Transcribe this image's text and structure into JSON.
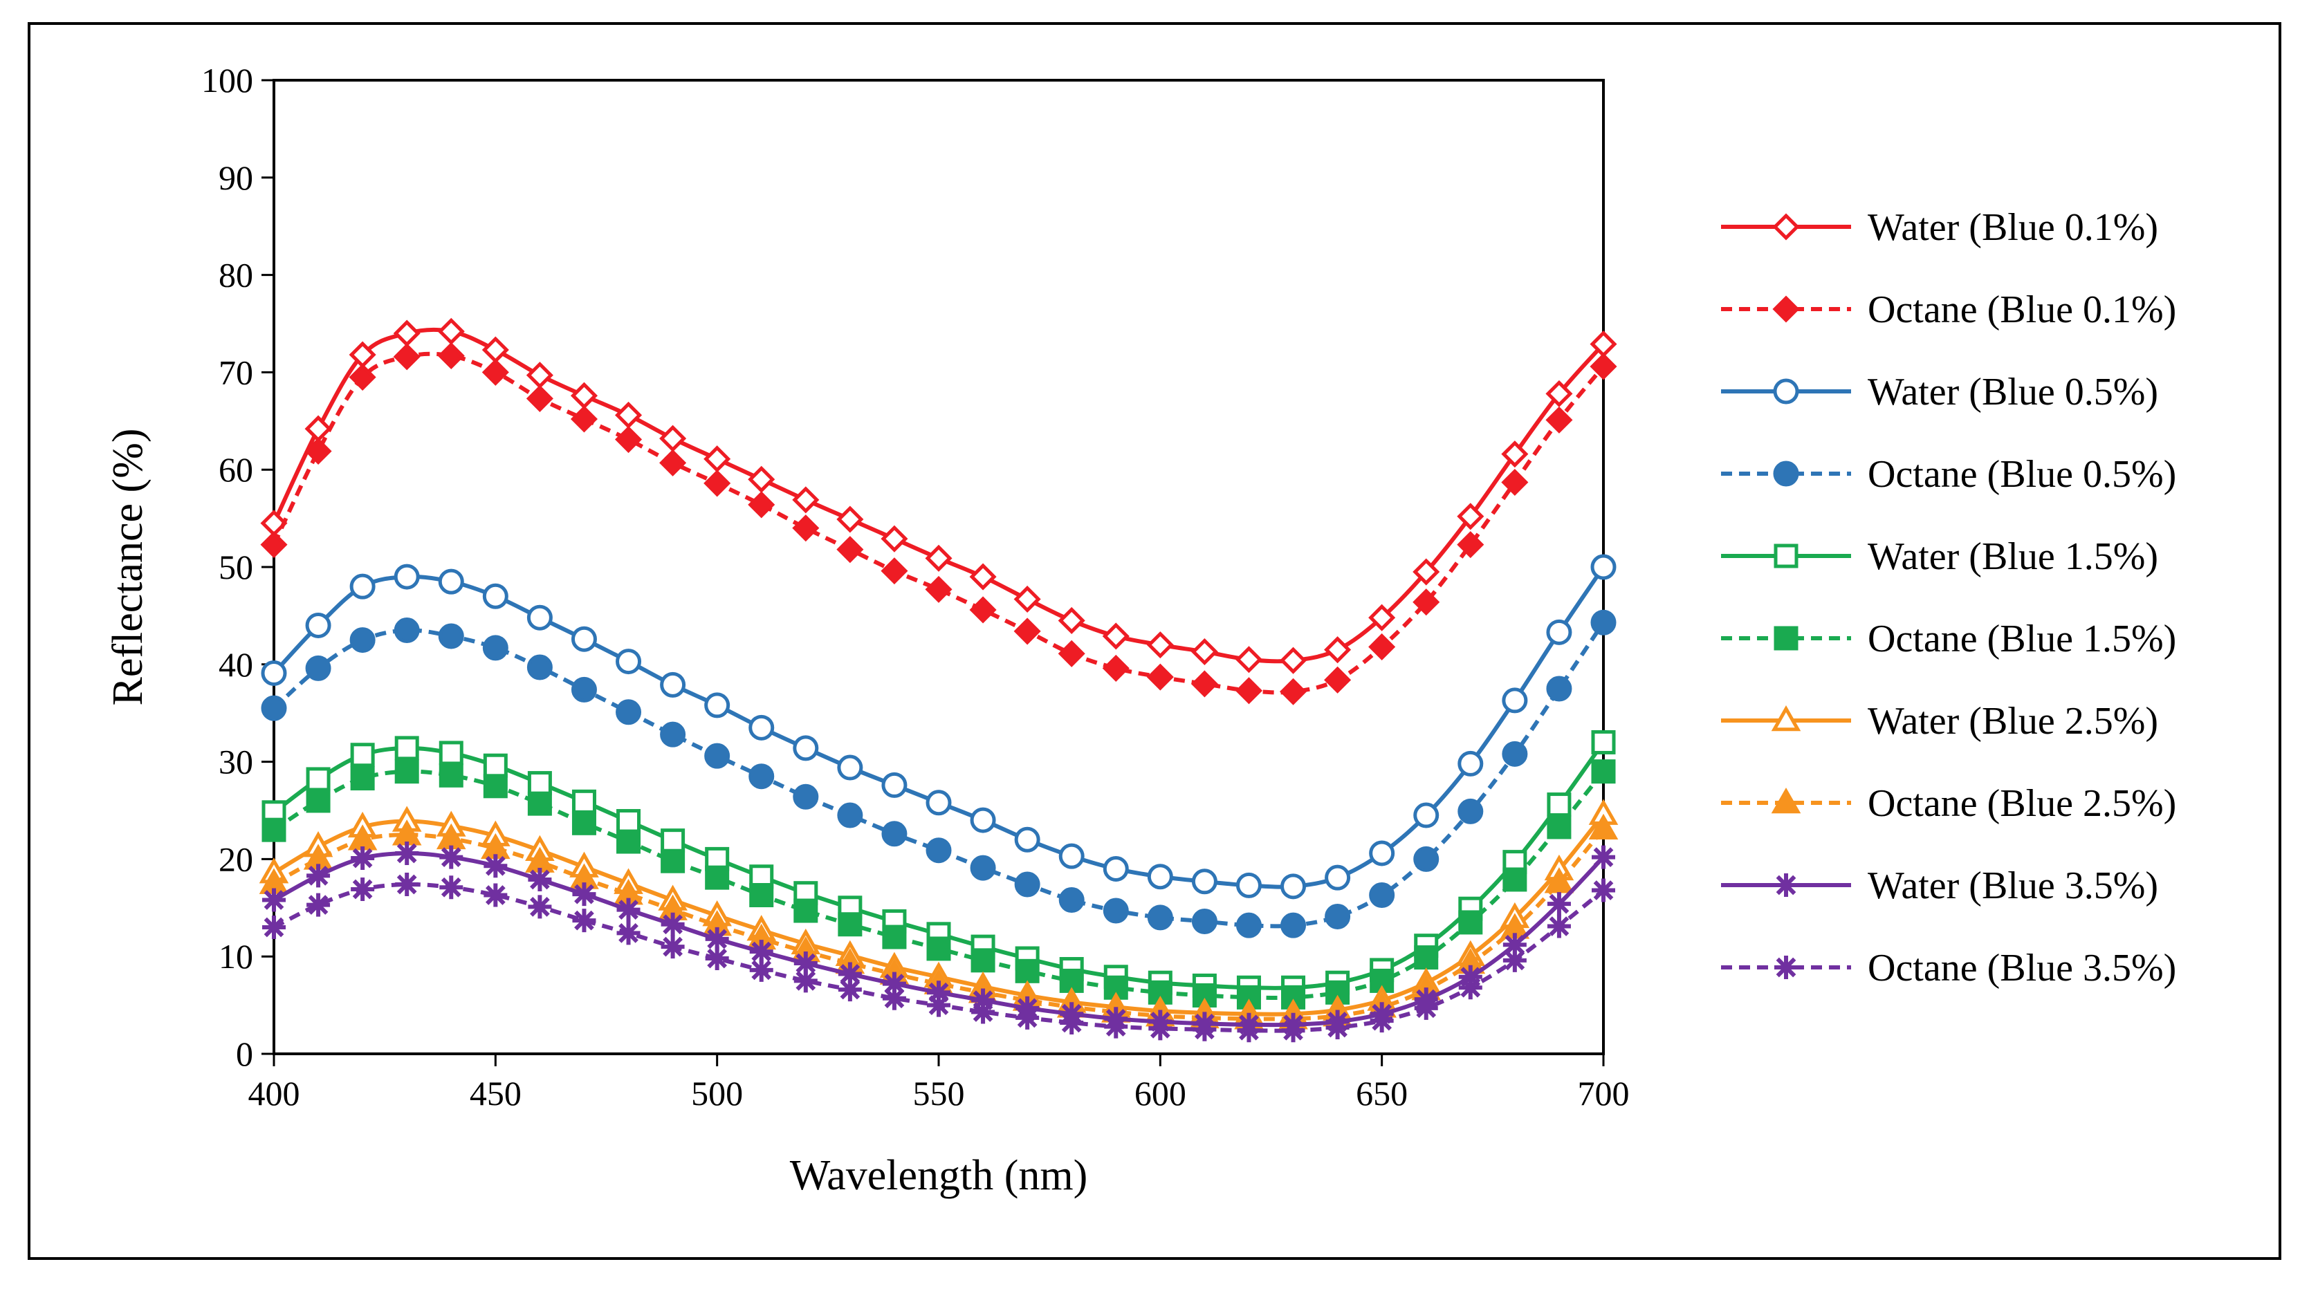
{
  "chart_data": {
    "type": "line",
    "title": "",
    "xlabel": "Wavelength (nm)",
    "ylabel": "Reflectance (%)",
    "xlim": [
      400,
      700
    ],
    "ylim": [
      0,
      100
    ],
    "x_ticks": [
      400,
      450,
      500,
      550,
      600,
      650,
      700
    ],
    "y_ticks": [
      0,
      10,
      20,
      30,
      40,
      50,
      60,
      70,
      80,
      90,
      100
    ],
    "grid": false,
    "legend_position": "right",
    "x": [
      400,
      410,
      420,
      430,
      440,
      450,
      460,
      470,
      480,
      490,
      500,
      510,
      520,
      530,
      540,
      550,
      560,
      570,
      580,
      590,
      600,
      610,
      620,
      630,
      640,
      650,
      660,
      670,
      680,
      690,
      700
    ],
    "series": [
      {
        "name": "Water (Blue 0.1%)",
        "color": "#ee1c24",
        "dash": "solid",
        "marker": "diamond-open",
        "values": [
          54.5,
          64.2,
          71.8,
          74.0,
          74.2,
          72.3,
          69.7,
          67.6,
          65.6,
          63.2,
          61.1,
          59.0,
          56.9,
          54.9,
          52.9,
          50.9,
          49.0,
          46.7,
          44.5,
          42.9,
          42.0,
          41.3,
          40.5,
          40.4,
          41.5,
          44.8,
          49.5,
          55.2,
          61.6,
          67.8,
          72.9
        ]
      },
      {
        "name": "Octane (Blue 0.1%)",
        "color": "#ee1c24",
        "dash": "dashed",
        "marker": "diamond-filled",
        "values": [
          52.3,
          61.9,
          69.5,
          71.6,
          71.7,
          70.0,
          67.3,
          65.2,
          63.1,
          60.7,
          58.6,
          56.4,
          54.0,
          51.8,
          49.6,
          47.7,
          45.6,
          43.4,
          41.1,
          39.6,
          38.7,
          38.0,
          37.3,
          37.2,
          38.4,
          41.8,
          46.4,
          52.3,
          58.7,
          65.1,
          70.6
        ]
      },
      {
        "name": "Water (Blue 0.5%)",
        "color": "#2e75b6",
        "dash": "solid",
        "marker": "circle-open",
        "values": [
          39.1,
          44.0,
          48.0,
          49.0,
          48.5,
          47.0,
          44.8,
          42.6,
          40.3,
          37.9,
          35.8,
          33.5,
          31.4,
          29.4,
          27.6,
          25.8,
          24.0,
          22.0,
          20.3,
          19.0,
          18.2,
          17.7,
          17.3,
          17.2,
          18.1,
          20.6,
          24.5,
          29.8,
          36.3,
          43.3,
          50.0
        ]
      },
      {
        "name": "Octane (Blue 0.5%)",
        "color": "#2e75b6",
        "dash": "dashed",
        "marker": "circle-filled",
        "values": [
          35.5,
          39.6,
          42.5,
          43.5,
          42.9,
          41.7,
          39.7,
          37.4,
          35.1,
          32.8,
          30.6,
          28.5,
          26.4,
          24.5,
          22.6,
          20.9,
          19.1,
          17.4,
          15.8,
          14.7,
          14.0,
          13.6,
          13.2,
          13.2,
          14.1,
          16.3,
          20.0,
          24.9,
          30.8,
          37.5,
          44.3
        ]
      },
      {
        "name": "Water (Blue 1.5%)",
        "color": "#1aaa50",
        "dash": "solid",
        "marker": "square-open",
        "values": [
          24.8,
          28.2,
          30.7,
          31.4,
          30.9,
          29.6,
          27.8,
          25.9,
          23.9,
          21.9,
          20.0,
          18.2,
          16.5,
          15.0,
          13.6,
          12.3,
          11.0,
          9.8,
          8.7,
          7.9,
          7.3,
          7.0,
          6.8,
          6.8,
          7.3,
          8.6,
          11.1,
          14.9,
          19.7,
          25.6,
          32.0
        ]
      },
      {
        "name": "Octane (Blue 1.5%)",
        "color": "#1aaa50",
        "dash": "dashed",
        "marker": "square-filled",
        "values": [
          23.0,
          26.0,
          28.3,
          29.0,
          28.6,
          27.5,
          25.7,
          23.7,
          21.8,
          19.8,
          18.1,
          16.3,
          14.7,
          13.3,
          12.0,
          10.8,
          9.6,
          8.5,
          7.5,
          6.8,
          6.3,
          6.0,
          5.8,
          5.8,
          6.3,
          7.5,
          9.9,
          13.5,
          17.9,
          23.3,
          29.0
        ]
      },
      {
        "name": "Water (Blue 2.5%)",
        "color": "#f7931e",
        "dash": "solid",
        "marker": "triangle-open",
        "values": [
          18.6,
          21.3,
          23.3,
          23.9,
          23.4,
          22.4,
          20.9,
          19.2,
          17.5,
          15.8,
          14.2,
          12.7,
          11.3,
          10.1,
          8.9,
          7.9,
          6.9,
          6.0,
          5.3,
          4.8,
          4.4,
          4.2,
          4.1,
          4.1,
          4.5,
          5.5,
          7.3,
          10.1,
          14.0,
          18.9,
          24.6
        ]
      },
      {
        "name": "Octane (Blue 2.5%)",
        "color": "#f7931e",
        "dash": "dashed",
        "marker": "triangle-filled",
        "values": [
          17.5,
          20.0,
          22.0,
          22.5,
          22.1,
          21.1,
          19.7,
          18.0,
          16.4,
          14.8,
          13.2,
          11.8,
          10.5,
          9.3,
          8.2,
          7.2,
          6.3,
          5.5,
          4.8,
          4.3,
          3.9,
          3.7,
          3.6,
          3.6,
          3.9,
          4.8,
          6.6,
          9.3,
          12.9,
          17.6,
          23.1
        ]
      },
      {
        "name": "Water (Blue 3.5%)",
        "color": "#7030a0",
        "dash": "solid",
        "marker": "star",
        "values": [
          15.8,
          18.3,
          20.1,
          20.6,
          20.2,
          19.3,
          17.9,
          16.4,
          14.8,
          13.3,
          11.8,
          10.5,
          9.3,
          8.2,
          7.2,
          6.3,
          5.5,
          4.7,
          4.1,
          3.6,
          3.3,
          3.1,
          3.0,
          3.0,
          3.3,
          4.1,
          5.6,
          7.9,
          11.2,
          15.4,
          20.2
        ]
      },
      {
        "name": "Octane (Blue 3.5%)",
        "color": "#7030a0",
        "dash": "dashed",
        "marker": "star",
        "values": [
          13.0,
          15.3,
          16.9,
          17.4,
          17.1,
          16.3,
          15.1,
          13.7,
          12.4,
          11.0,
          9.8,
          8.6,
          7.5,
          6.6,
          5.7,
          5.0,
          4.3,
          3.7,
          3.2,
          2.8,
          2.6,
          2.5,
          2.4,
          2.4,
          2.7,
          3.4,
          4.7,
          6.8,
          9.6,
          13.1,
          16.8
        ]
      }
    ]
  }
}
